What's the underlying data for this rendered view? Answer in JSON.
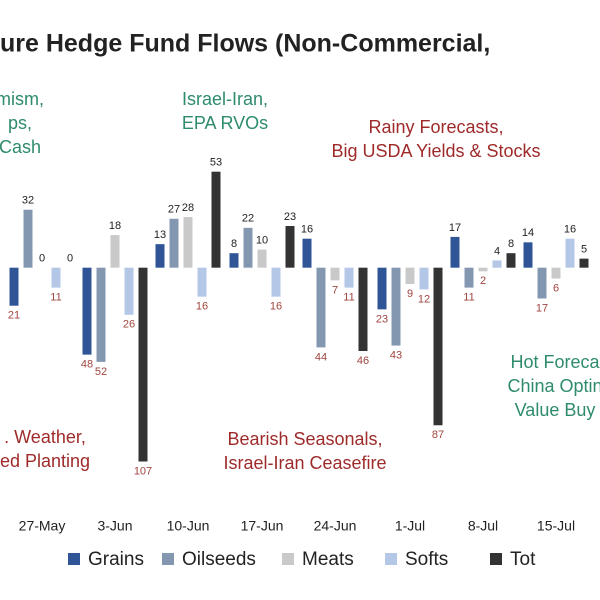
{
  "chart_data": {
    "type": "bar",
    "title": "ure Hedge Fund Flows (Non-Commercial,",
    "categories": [
      "27-May",
      "3-Jun",
      "10-Jun",
      "17-Jun",
      "24-Jun",
      "1-Jul",
      "8-Jul",
      "15-Jul"
    ],
    "series": [
      {
        "name": "Grains",
        "color": "#2f5597",
        "values": [
          -21,
          -48,
          13,
          8,
          16,
          -23,
          17,
          14
        ],
        "value_labels": [
          "21",
          "48",
          "13",
          "8",
          "16",
          "23",
          "17",
          "14"
        ]
      },
      {
        "name": "Oilseeds",
        "color": "#8497b0",
        "values": [
          32,
          -52,
          27,
          22,
          -44,
          -43,
          -11,
          -17
        ],
        "value_labels": [
          "32",
          "52",
          "27",
          "22",
          "44",
          "43",
          "11",
          "17"
        ]
      },
      {
        "name": "Meats",
        "color": "#c9c9c9",
        "values": [
          0,
          18,
          28,
          10,
          -7,
          -9,
          -2,
          -6
        ],
        "value_labels": [
          "0",
          "18",
          "28",
          "10",
          "7",
          "9",
          "2",
          "6"
        ]
      },
      {
        "name": "Softs",
        "color": "#b4c7e7",
        "values": [
          -11,
          -26,
          -16,
          -16,
          -11,
          -12,
          4,
          16
        ],
        "value_labels": [
          "11",
          "26",
          "16",
          "16",
          "11",
          "12",
          "4",
          "16"
        ]
      },
      {
        "name": "Tot",
        "color": "#333333",
        "values": [
          0,
          -107,
          53,
          23,
          -46,
          -87,
          8,
          5
        ],
        "value_labels": [
          "0",
          "107",
          "53",
          "23",
          "46",
          "87",
          "8",
          "5"
        ]
      }
    ],
    "ylim": [
      -115,
      60
    ],
    "annotations": [
      {
        "lines": [
          "mism,",
          "ps,",
          "Cash"
        ],
        "color": "#2e8b6e"
      },
      {
        "lines": [
          "Israel-Iran,",
          "EPA RVOs"
        ],
        "color": "#2e8b6e"
      },
      {
        "lines": [
          "Rainy Forecasts,",
          "Big USDA Yields & Stocks"
        ],
        "color": "#9e2a2a"
      },
      {
        "lines": [
          "Hot Foreca",
          "China Optin",
          "Value Buy"
        ],
        "color": "#2e8b6e"
      },
      {
        "lines": [
          ". Weather,",
          "ed Planting"
        ],
        "color": "#9e2a2a"
      },
      {
        "lines": [
          "Bearish Seasonals,",
          "Israel-Iran Ceasefire"
        ],
        "color": "#9e2a2a"
      }
    ]
  }
}
